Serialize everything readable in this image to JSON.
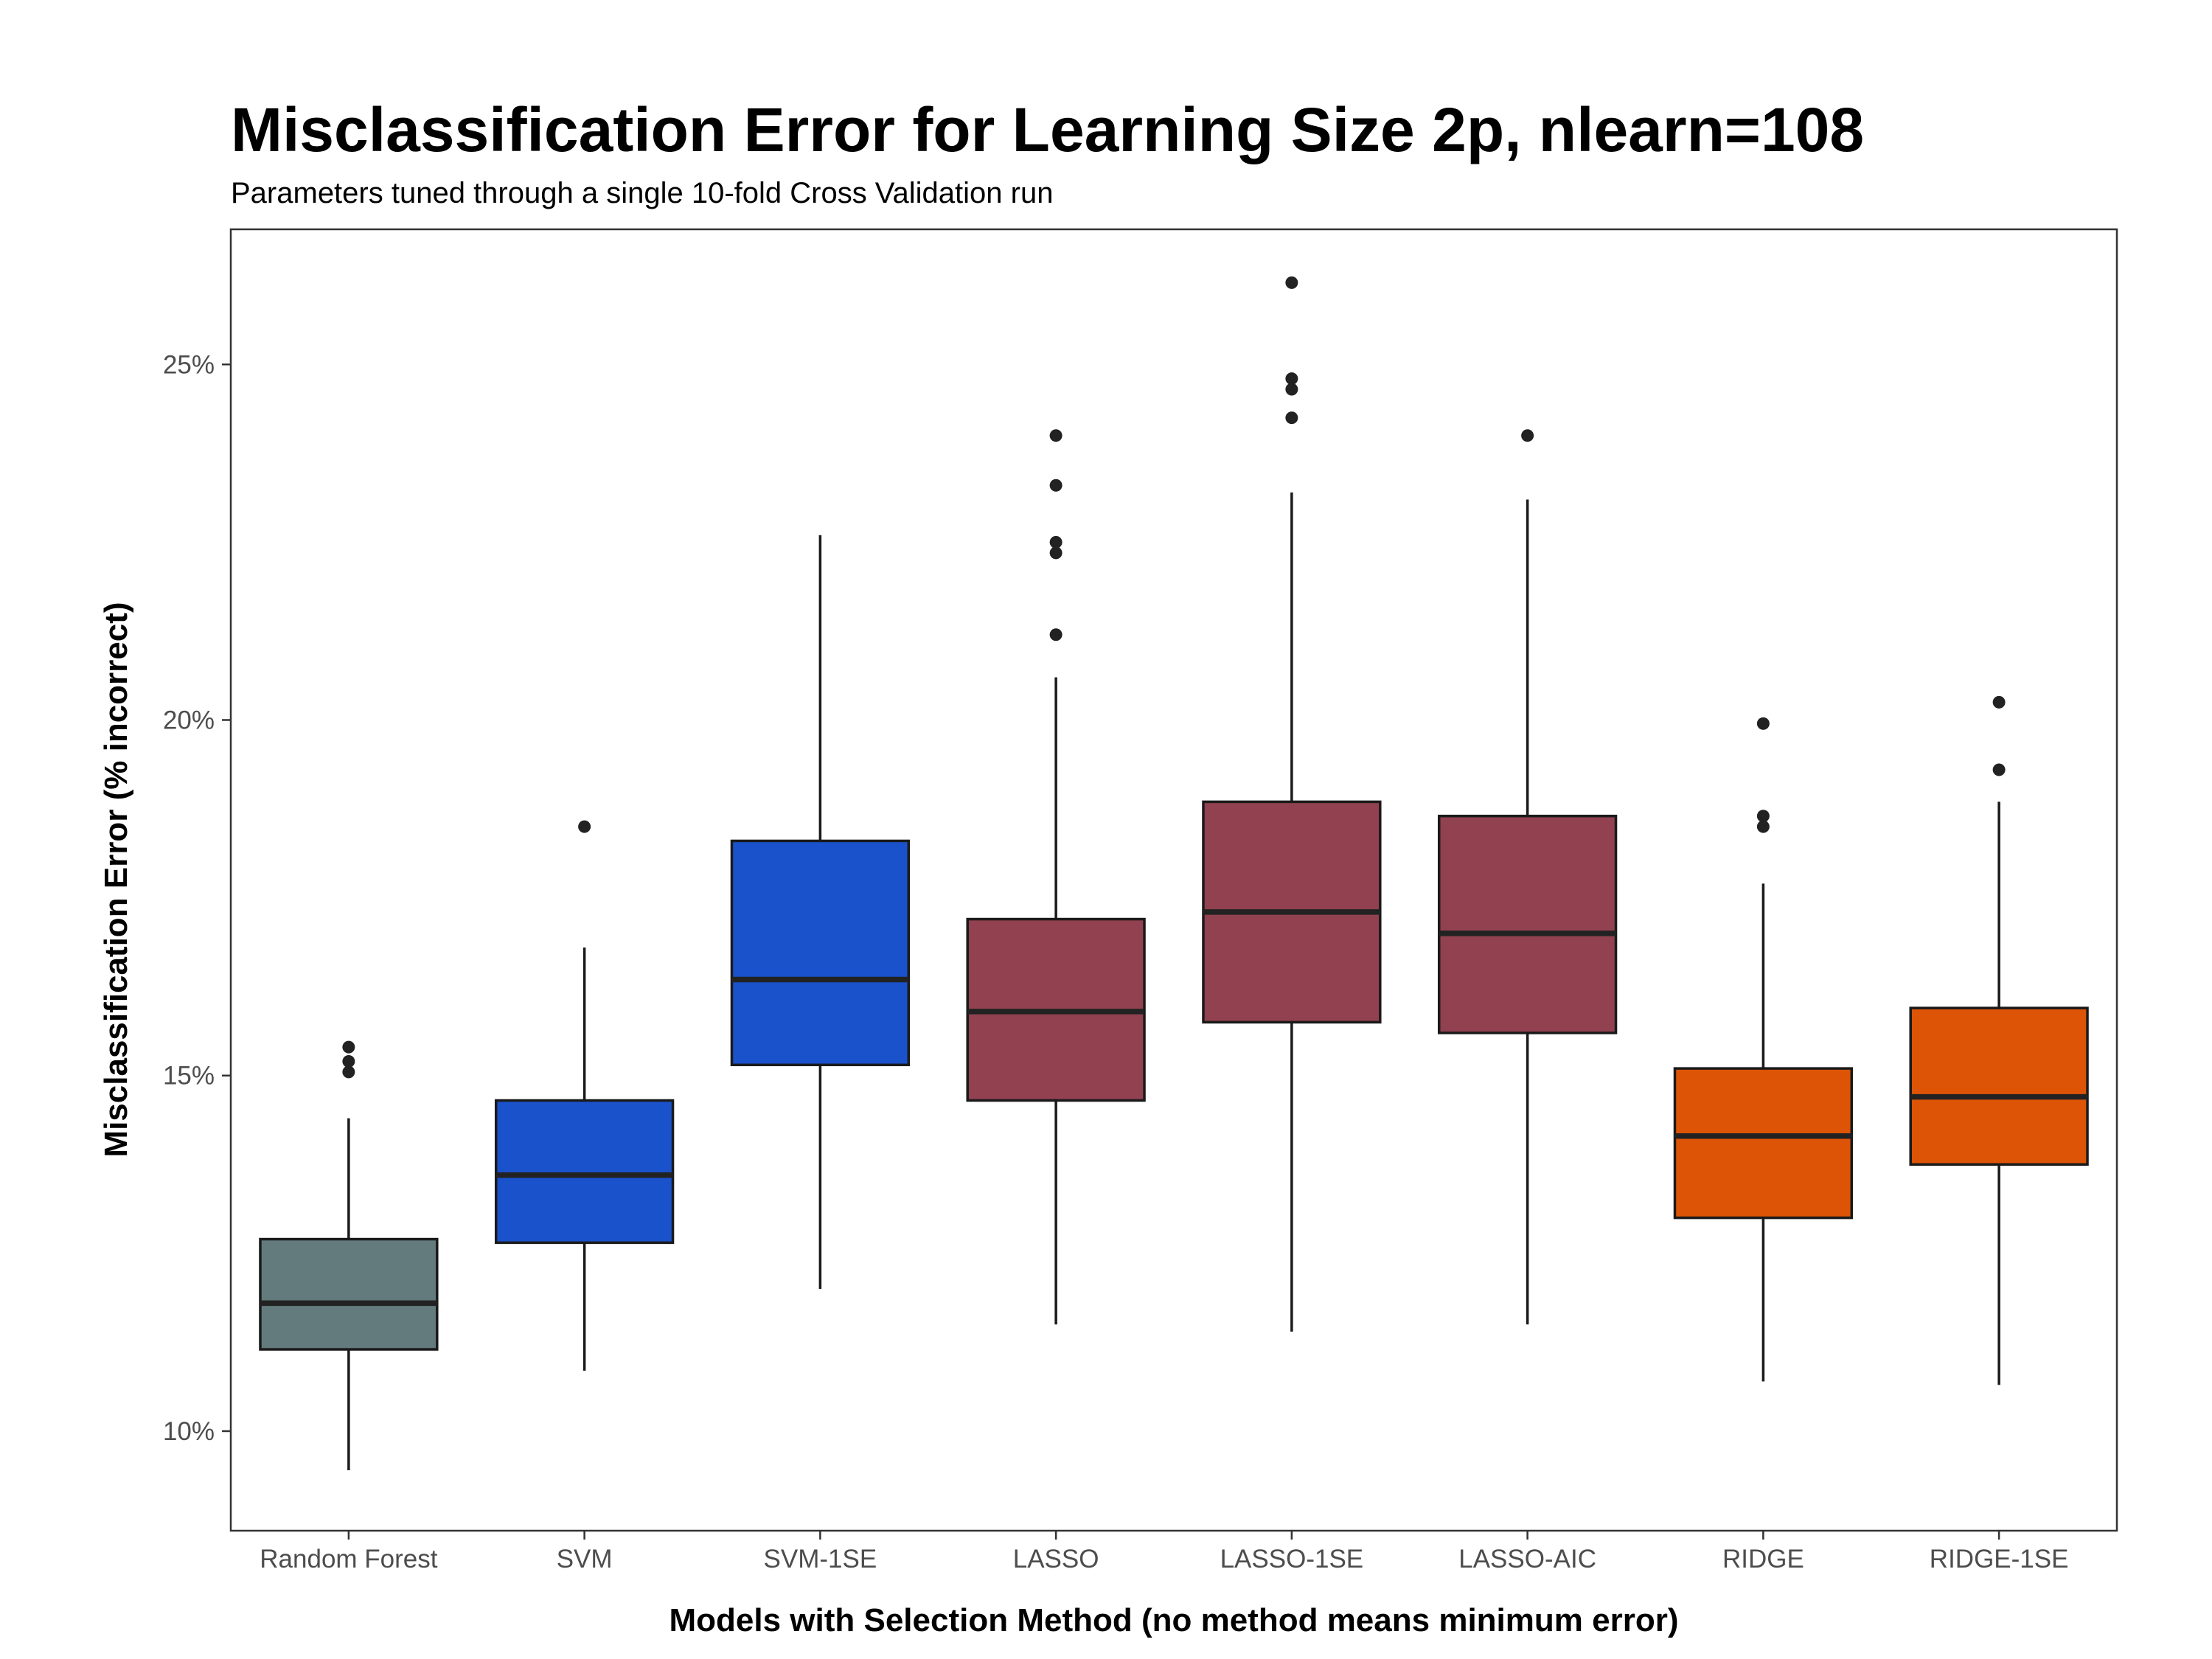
{
  "chart_data": {
    "type": "boxplot",
    "title": "Misclassification Error for Learning Size 2p, nlearn=108",
    "subtitle": "Parameters tuned through a single 10-fold Cross Validation run",
    "xlabel": "Models with Selection Method (no method means minimum error)",
    "ylabel": "Misclassification Error (% incorrect)",
    "ylim": [
      8.6,
      26.9
    ],
    "yticks": [
      10,
      15,
      20,
      25
    ],
    "ytick_labels": [
      "10%",
      "15%",
      "20%",
      "25%"
    ],
    "grid": false,
    "categories": [
      "Random Forest",
      "SVM",
      "SVM-1SE",
      "LASSO",
      "LASSO-1SE",
      "LASSO-AIC",
      "RIDGE",
      "RIDGE-1SE"
    ],
    "boxes": [
      {
        "category": "Random Forest",
        "whisker_low": 9.45,
        "q1": 11.15,
        "median": 11.8,
        "q3": 12.7,
        "whisker_high": 14.4,
        "outliers": [
          15.05,
          15.2,
          15.4
        ],
        "color": "#637B7D"
      },
      {
        "category": "SVM",
        "whisker_low": 10.85,
        "q1": 12.65,
        "median": 13.6,
        "q3": 14.65,
        "whisker_high": 16.8,
        "outliers": [
          18.5
        ],
        "color": "#1A52CC"
      },
      {
        "category": "SVM-1SE",
        "whisker_low": 12.0,
        "q1": 15.15,
        "median": 16.35,
        "q3": 18.3,
        "whisker_high": 22.6,
        "outliers": [],
        "color": "#1A52CC"
      },
      {
        "category": "LASSO",
        "whisker_low": 11.5,
        "q1": 14.65,
        "median": 15.9,
        "q3": 17.2,
        "whisker_high": 20.6,
        "outliers": [
          21.2,
          22.35,
          22.5,
          23.3,
          24.0
        ],
        "color": "#914150"
      },
      {
        "category": "LASSO-1SE",
        "whisker_low": 11.4,
        "q1": 15.75,
        "median": 17.3,
        "q3": 18.85,
        "whisker_high": 23.2,
        "outliers": [
          24.25,
          24.65,
          24.8,
          26.15
        ],
        "color": "#914150"
      },
      {
        "category": "LASSO-AIC",
        "whisker_low": 11.5,
        "q1": 15.6,
        "median": 17.0,
        "q3": 18.65,
        "whisker_high": 23.1,
        "outliers": [
          24.0
        ],
        "color": "#914150"
      },
      {
        "category": "RIDGE",
        "whisker_low": 10.7,
        "q1": 13.0,
        "median": 14.15,
        "q3": 15.1,
        "whisker_high": 17.7,
        "outliers": [
          18.5,
          18.65,
          19.95
        ],
        "color": "#DD5406"
      },
      {
        "category": "RIDGE-1SE",
        "whisker_low": 10.65,
        "q1": 13.75,
        "median": 14.7,
        "q3": 15.95,
        "whisker_high": 18.85,
        "outliers": [
          19.3,
          20.25
        ],
        "color": "#DD5406"
      }
    ]
  }
}
